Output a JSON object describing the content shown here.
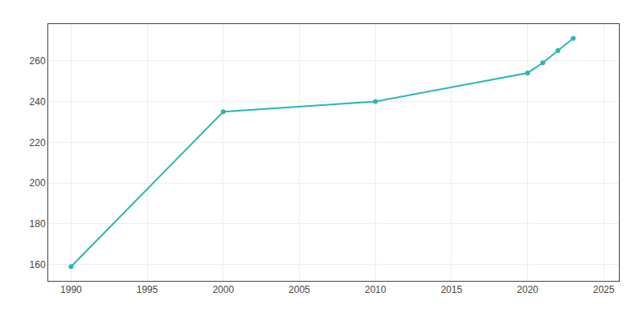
{
  "chart_data": {
    "type": "line",
    "x": [
      1990,
      2000,
      2010,
      2020,
      2021,
      2022,
      2023
    ],
    "values": [
      159,
      235,
      240,
      254,
      259,
      265,
      271
    ],
    "color": "#2ab5b5",
    "marker": "circle",
    "xlim": [
      1988.5,
      2026
    ],
    "ylim": [
      152,
      278
    ],
    "xticks": [
      1990,
      1995,
      2000,
      2005,
      2010,
      2015,
      2020,
      2025
    ],
    "yticks": [
      160,
      180,
      200,
      220,
      240,
      260
    ],
    "grid": true
  }
}
